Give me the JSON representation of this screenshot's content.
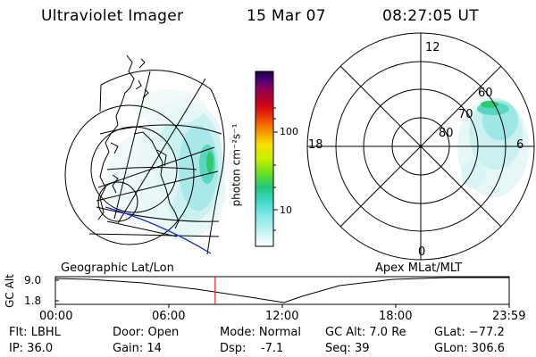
{
  "header": {
    "instrument": "Ultraviolet Imager",
    "date": "15 Mar 07",
    "time": "08:27:05 UT"
  },
  "colorbar": {
    "label": "photon cm⁻²s⁻¹",
    "ticks": [
      "100",
      "10"
    ],
    "scale": "log",
    "colors": [
      "#ffffff",
      "#c8f4f4",
      "#7fe8e8",
      "#3dd7c8",
      "#22c878",
      "#6fe020",
      "#c8f000",
      "#f8e000",
      "#f89000",
      "#f05000",
      "#e01010",
      "#b8002a",
      "#90005a",
      "#50007a",
      "#1a0040"
    ]
  },
  "left_map": {
    "caption": "Geographic Lat/Lon"
  },
  "right_map": {
    "caption": "Apex  MLat/MLT",
    "mlt_labels": [
      "12",
      "18",
      "6",
      "0"
    ],
    "mlat_labels": [
      "60",
      "70",
      "80"
    ]
  },
  "timeline": {
    "axis_label": "GC Alt",
    "y_ticks": [
      "9.0",
      "1.8"
    ],
    "x_ticks": [
      "00:00",
      "06:00",
      "12:00",
      "18:00",
      "23:59"
    ],
    "current_time_hours": 8.45,
    "marker_color": "#e02020"
  },
  "footer": {
    "flt": "Flt: LBHL",
    "ip": "IP: 36.0",
    "door": "Door: Open",
    "gain": "Gain: 14",
    "mode": "Mode: Normal",
    "dsp": "Dsp:    -7.1",
    "gcalt": "GC Alt: 7.0 Re",
    "seq": "Seq: 39",
    "glat": "GLat: −77.2",
    "glon": "GLon: 306.6"
  }
}
